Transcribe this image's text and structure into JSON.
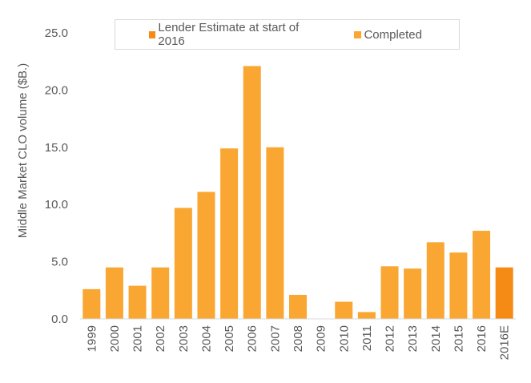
{
  "chart_data": {
    "type": "bar",
    "title": "",
    "xlabel": "",
    "ylabel": "Middle Market CLO volume ($B.)",
    "ylim": [
      0,
      25
    ],
    "yticks": [
      "0.0",
      "5.0",
      "10.0",
      "15.0",
      "20.0",
      "25.0"
    ],
    "categories": [
      "1999",
      "2000",
      "2001",
      "2002",
      "2003",
      "2004",
      "2005",
      "2006",
      "2007",
      "2008",
      "2009",
      "2010",
      "2011",
      "2012",
      "2013",
      "2014",
      "2015",
      "2016",
      "2016E"
    ],
    "series": [
      {
        "name": "Completed",
        "color": "#f9a732",
        "values": [
          2.6,
          4.5,
          2.9,
          4.5,
          9.7,
          11.1,
          14.9,
          22.1,
          15.0,
          2.1,
          0.0,
          1.5,
          0.6,
          4.6,
          4.4,
          6.7,
          5.8,
          7.7,
          null
        ]
      },
      {
        "name": "Lender Estimate at start of 2016",
        "color": "#f58b14",
        "values": [
          null,
          null,
          null,
          null,
          null,
          null,
          null,
          null,
          null,
          null,
          null,
          null,
          null,
          null,
          null,
          null,
          null,
          null,
          4.5
        ]
      }
    ],
    "grid": false,
    "legend_position": "top-center"
  }
}
